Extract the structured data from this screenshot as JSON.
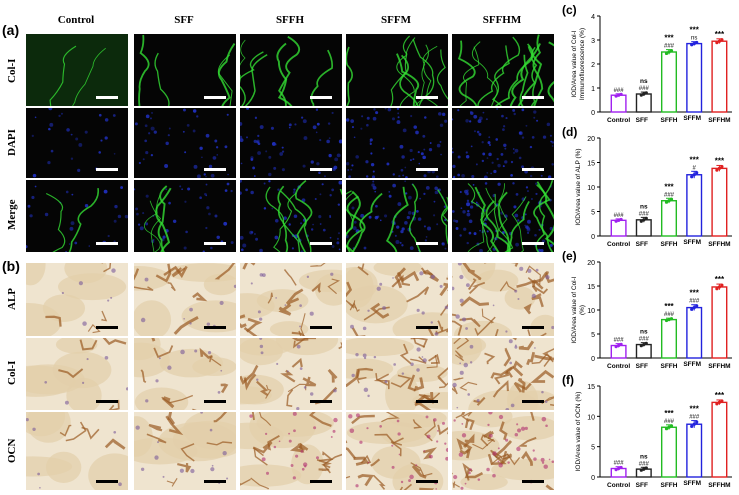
{
  "figure": {
    "columns": [
      "Control",
      "SFF",
      "SFFH",
      "SFFM",
      "SFFHM"
    ],
    "panel_a": {
      "letter": "(a)",
      "rows": [
        "Col-I",
        "DAPI",
        "Merge"
      ]
    },
    "panel_b": {
      "letter": "(b)",
      "rows": [
        "ALP",
        "Col-I",
        "OCN"
      ]
    }
  },
  "colors": {
    "Control": "#a020f0",
    "SFF": "#222222",
    "SFFH": "#22bb22",
    "SFFM": "#2222dd",
    "SFFHM": "#e02020"
  },
  "chart_data": [
    {
      "type": "bar",
      "letter": "(c)",
      "categories": [
        "Control",
        "SFF",
        "SFFH",
        "SFFM",
        "SFFHM"
      ],
      "values": [
        0.7,
        0.75,
        2.5,
        2.85,
        2.95
      ],
      "errors": [
        0.06,
        0.08,
        0.1,
        0.08,
        0.1
      ],
      "annotations_top": [
        "",
        "ns",
        "***",
        "***",
        "***"
      ],
      "annotations_bottom": [
        "###",
        "###",
        "###",
        "ns",
        ""
      ],
      "ylabel": "IOD/Area value of Col-I Immunofluorescence (%)",
      "ylim": [
        0,
        4
      ],
      "yticks": [
        0,
        1,
        2,
        3,
        4
      ]
    },
    {
      "type": "bar",
      "letter": "(d)",
      "categories": [
        "Control",
        "SFF",
        "SFFH",
        "SFFM",
        "SFFHM"
      ],
      "values": [
        3.2,
        3.3,
        7.2,
        12.5,
        13.8
      ],
      "errors": [
        0.3,
        0.5,
        0.5,
        0.7,
        0.6
      ],
      "annotations_top": [
        "",
        "ns",
        "***",
        "***",
        "***"
      ],
      "annotations_bottom": [
        "###",
        "###",
        "###",
        "#",
        ""
      ],
      "ylabel": "IOD/Area value of ALP (%)",
      "ylim": [
        0,
        20
      ],
      "yticks": [
        0,
        5,
        10,
        15,
        20
      ]
    },
    {
      "type": "bar",
      "letter": "(e)",
      "categories": [
        "Control",
        "SFF",
        "SFFH",
        "SFFM",
        "SFFHM"
      ],
      "values": [
        2.6,
        2.8,
        8.0,
        10.5,
        14.8
      ],
      "errors": [
        0.4,
        0.4,
        0.3,
        0.6,
        0.6
      ],
      "annotations_top": [
        "",
        "ns",
        "***",
        "***",
        "***"
      ],
      "annotations_bottom": [
        "###",
        "###",
        "###",
        "###",
        ""
      ],
      "ylabel": "IOD/Area value of Col-I (%)",
      "ylim": [
        0,
        20
      ],
      "yticks": [
        0,
        5,
        10,
        15,
        20
      ]
    },
    {
      "type": "bar",
      "letter": "(f)",
      "categories": [
        "Control",
        "SFF",
        "SFFH",
        "SFFM",
        "SFFHM"
      ],
      "values": [
        1.4,
        1.3,
        8.2,
        8.7,
        12.3
      ],
      "errors": [
        0.3,
        0.3,
        0.4,
        0.6,
        0.4
      ],
      "annotations_top": [
        "",
        "ns",
        "***",
        "***",
        "***"
      ],
      "annotations_bottom": [
        "###",
        "###",
        "###",
        "###",
        ""
      ],
      "ylabel": "IOD/Area value of OCN (%)",
      "ylim": [
        0,
        15
      ],
      "yticks": [
        0,
        5,
        10,
        15
      ]
    }
  ]
}
